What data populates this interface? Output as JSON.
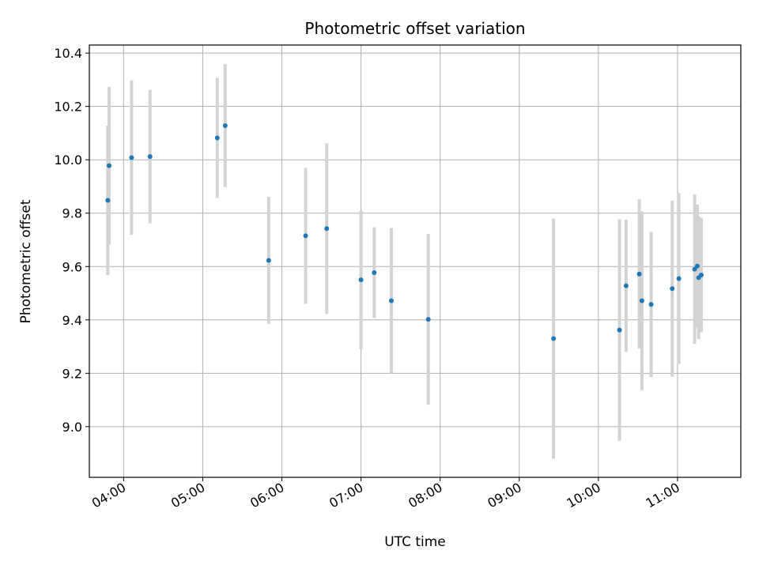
{
  "chart_data": {
    "type": "scatter",
    "title": "Photometric offset variation",
    "xlabel": "UTC time",
    "ylabel": "Photometric offset",
    "x_unit": "time of day (hours, UTC)",
    "xlim": [
      "03:34",
      "11:48"
    ],
    "ylim": [
      8.81,
      10.43
    ],
    "grid": true,
    "legend": "none",
    "x_ticks": [
      "04:00",
      "05:00",
      "06:00",
      "07:00",
      "08:00",
      "09:00",
      "10:00",
      "11:00"
    ],
    "y_ticks": [
      "9.0",
      "9.2",
      "9.4",
      "9.6",
      "9.8",
      "10.0",
      "10.2",
      "10.4"
    ],
    "colors": {
      "point": "#1f77b4",
      "errorbar": "#d3d3d3",
      "grid": "#b0b0b0"
    },
    "points": [
      {
        "t": "03:48",
        "y": 9.848,
        "err": 0.28
      },
      {
        "t": "03:49",
        "y": 9.978,
        "err": 0.295
      },
      {
        "t": "04:06",
        "y": 10.008,
        "err": 0.29
      },
      {
        "t": "04:20",
        "y": 10.012,
        "err": 0.25
      },
      {
        "t": "05:11",
        "y": 10.082,
        "err": 0.225
      },
      {
        "t": "05:17",
        "y": 10.128,
        "err": 0.23
      },
      {
        "t": "05:50",
        "y": 9.623,
        "err": 0.238
      },
      {
        "t": "06:18",
        "y": 9.715,
        "err": 0.255
      },
      {
        "t": "06:34",
        "y": 9.742,
        "err": 0.32
      },
      {
        "t": "07:00",
        "y": 9.55,
        "err": 0.26
      },
      {
        "t": "07:10",
        "y": 9.577,
        "err": 0.17
      },
      {
        "t": "07:23",
        "y": 9.472,
        "err": 0.272
      },
      {
        "t": "07:51",
        "y": 9.402,
        "err": 0.32
      },
      {
        "t": "09:26",
        "y": 9.33,
        "err": 0.45
      },
      {
        "t": "10:16",
        "y": 9.362,
        "err": 0.415
      },
      {
        "t": "10:21",
        "y": 9.528,
        "err": 0.248
      },
      {
        "t": "10:31",
        "y": 9.572,
        "err": 0.28
      },
      {
        "t": "10:33",
        "y": 9.472,
        "err": 0.335
      },
      {
        "t": "10:40",
        "y": 9.458,
        "err": 0.272
      },
      {
        "t": "10:56",
        "y": 9.517,
        "err": 0.33
      },
      {
        "t": "11:01",
        "y": 9.555,
        "err": 0.32
      },
      {
        "t": "11:13",
        "y": 9.59,
        "err": 0.28
      },
      {
        "t": "11:15",
        "y": 9.602,
        "err": 0.23
      },
      {
        "t": "11:16",
        "y": 9.558,
        "err": 0.23
      },
      {
        "t": "11:18",
        "y": 9.568,
        "err": 0.215
      }
    ]
  }
}
